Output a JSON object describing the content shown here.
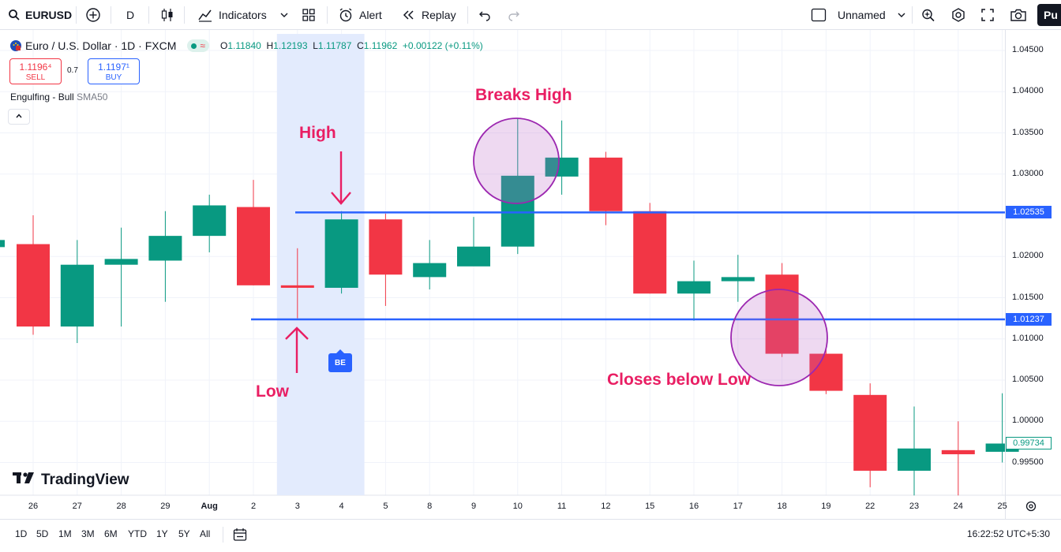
{
  "toolbar": {
    "symbol": "EURUSD",
    "interval": "D",
    "indicators_label": "Indicators",
    "alert_label": "Alert",
    "replay_label": "Replay",
    "layout_name": "Unnamed",
    "publish_label": "Pu"
  },
  "legend": {
    "title": "Euro / U.S. Dollar · 1D · FXCM",
    "open_key": "O",
    "open": "1.11840",
    "high_key": "H",
    "high": "1.12193",
    "low_key": "L",
    "low": "1.11787",
    "close_key": "C",
    "close": "1.11962",
    "change": "+0.00122 (+0.11%)",
    "market_status_color": "#089981"
  },
  "trade": {
    "sell_price": "1.1196⁴",
    "sell_label": "SELL",
    "spread": "0.7",
    "buy_price": "1.1197¹",
    "buy_label": "BUY"
  },
  "indicator": {
    "name": "Engulfing - Bull",
    "sub": "SMA50"
  },
  "price_axis": {
    "ticks": [
      "1.04500",
      "1.04000",
      "1.03500",
      "1.03000",
      "1.02000",
      "1.01500",
      "1.01000",
      "1.00500",
      "1.00000",
      "0.99500"
    ],
    "high_level": "1.02535",
    "low_level": "1.01237",
    "last_price": "0.99734"
  },
  "time_axis": {
    "labels": [
      "26",
      "27",
      "28",
      "29",
      "Aug",
      "2",
      "3",
      "4",
      "5",
      "8",
      "9",
      "10",
      "11",
      "12",
      "15",
      "16",
      "17",
      "18",
      "19",
      "22",
      "23",
      "24",
      "25"
    ]
  },
  "chart_data": {
    "type": "candlestick",
    "x": [
      "26",
      "27",
      "28",
      "29",
      "Aug",
      "2",
      "3",
      "4",
      "5",
      "8",
      "9",
      "10",
      "11",
      "12",
      "15",
      "16",
      "17",
      "18",
      "19",
      "22",
      "23",
      "24",
      "25"
    ],
    "open": [
      1.0215,
      1.0115,
      1.019,
      1.0195,
      1.0225,
      1.026,
      1.0165,
      1.0162,
      1.0245,
      1.0175,
      1.0188,
      1.0212,
      1.0297,
      1.032,
      1.0255,
      1.0155,
      1.017,
      1.0178,
      1.0082,
      1.0032,
      0.994,
      0.9965,
      0.9963
    ],
    "high": [
      1.025,
      1.022,
      1.0235,
      1.0255,
      1.0275,
      1.0293,
      1.021,
      1.0255,
      1.0252,
      1.022,
      1.0248,
      1.0368,
      1.0365,
      1.0327,
      1.0265,
      1.0195,
      1.0202,
      1.0192,
      1.0088,
      1.0046,
      1.0018,
      1.0,
      1.0034
    ],
    "low": [
      1.0105,
      1.0095,
      1.0115,
      1.0145,
      1.0205,
      1.0165,
      1.0125,
      1.0155,
      1.014,
      1.016,
      1.019,
      1.0203,
      1.0275,
      1.0238,
      1.0155,
      1.0122,
      1.0145,
      1.0078,
      1.0033,
      0.992,
      0.991,
      0.991,
      0.995
    ],
    "close": [
      1.0115,
      1.019,
      1.0197,
      1.0225,
      1.0262,
      1.0165,
      1.0162,
      1.0245,
      1.0178,
      1.0192,
      1.0212,
      1.0298,
      1.032,
      1.0255,
      1.0155,
      1.017,
      1.0175,
      1.0082,
      1.0037,
      0.994,
      0.9967,
      0.996,
      0.9973
    ],
    "ylim": [
      0.99,
      1.046
    ],
    "horizontal_lines": [
      1.02535,
      1.01237
    ],
    "highlight_range": [
      "3",
      "4"
    ],
    "annotations": [
      "High",
      "Low",
      "Breaks High",
      "Closes below Low"
    ],
    "signal_badge": "BE",
    "colors": {
      "up": "#089981",
      "down": "#f23645",
      "level_line": "#2962ff",
      "highlight": "#e3ebfd",
      "circle": "#9c27b0",
      "arrow": "#e91e63"
    }
  },
  "annotation_text": {
    "high": "High",
    "low": "Low",
    "breaks_high": "Breaks High",
    "closes_below_low": "Closes below Low",
    "be": "BE"
  },
  "brand": "TradingView",
  "bottom": {
    "ranges": [
      "1D",
      "5D",
      "1M",
      "3M",
      "6M",
      "YTD",
      "1Y",
      "5Y",
      "All"
    ],
    "clock": "16:22:52 UTC+5:30"
  }
}
